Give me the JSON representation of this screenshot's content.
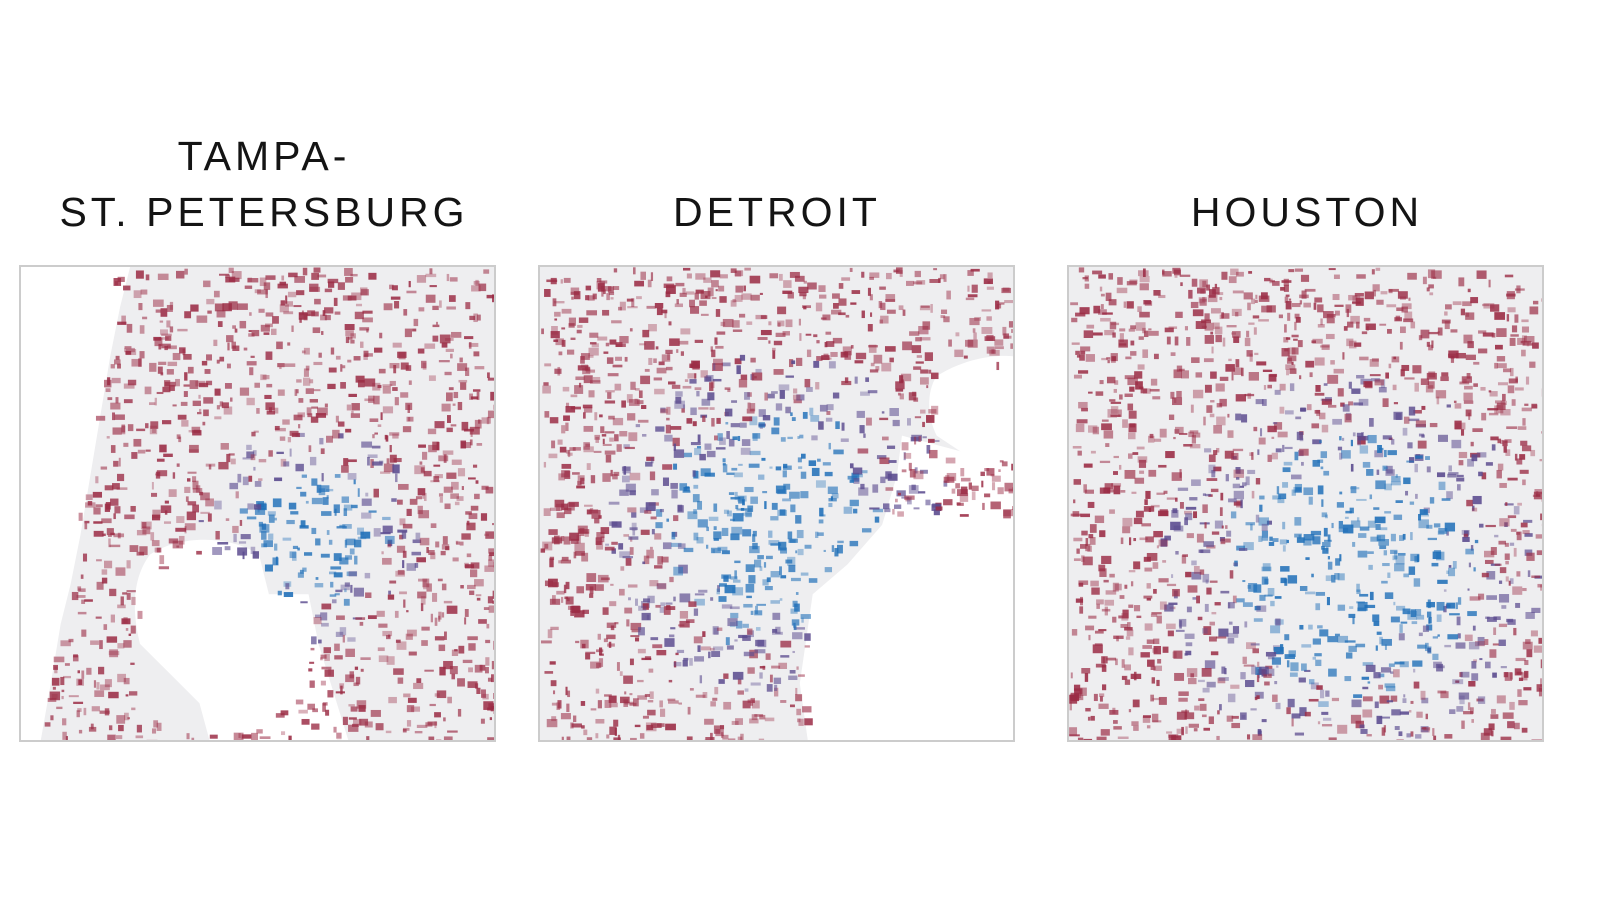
{
  "panels": [
    {
      "id": "tampa",
      "title_lines": [
        "TAMPA-",
        "ST. PETERSBURG"
      ]
    },
    {
      "id": "detroit",
      "title_lines": [
        "DETROIT"
      ]
    },
    {
      "id": "houston",
      "title_lines": [
        "HOUSTON"
      ]
    }
  ],
  "colors": {
    "land": "#eeeef0",
    "water": "#ffffff",
    "red": "#9b2c45",
    "purple": "#5a4a8e",
    "blue": "#1f6fb8",
    "frame": "#cccccc"
  }
}
